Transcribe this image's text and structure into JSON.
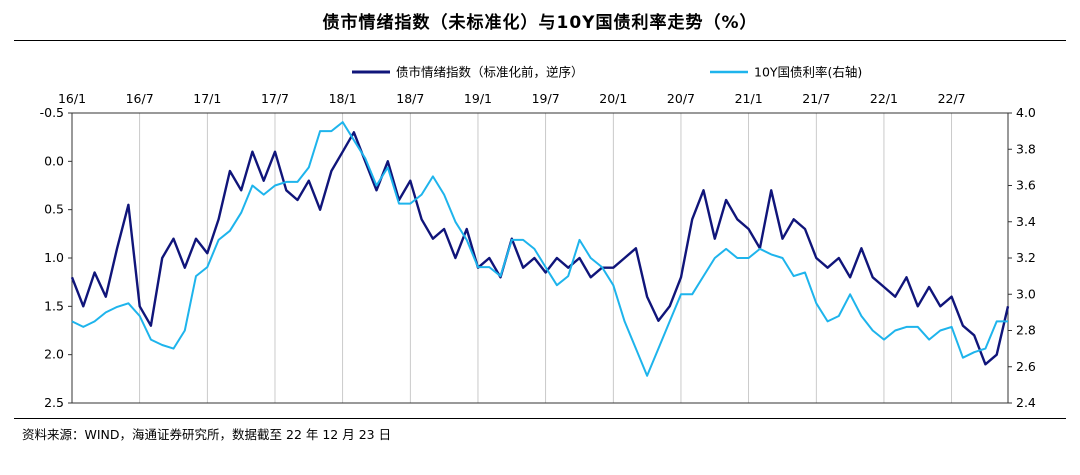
{
  "title": "债市情绪指数（未标准化）与10Y国债利率走势（%）",
  "source": "资料来源：WIND，海通证券研究所，数据截至 22 年 12 月 23 日",
  "chart_data": {
    "type": "line",
    "title": "债市情绪指数（未标准化）与10Y国债利率走势（%）",
    "x_tick_labels": [
      "16/1",
      "16/7",
      "17/1",
      "17/7",
      "18/1",
      "18/7",
      "19/1",
      "19/7",
      "20/1",
      "20/7",
      "21/1",
      "21/7",
      "22/1",
      "22/7"
    ],
    "x_range": [
      "2016-01",
      "2022-12"
    ],
    "y_left": {
      "range": [
        2.5,
        -0.5
      ],
      "reversed": true,
      "ticks": [
        "-0.5",
        "0.0",
        "0.5",
        "1.0",
        "1.5",
        "2.0",
        "2.5"
      ]
    },
    "y_right": {
      "range": [
        2.4,
        4.0
      ],
      "ticks": [
        "2.4",
        "2.6",
        "2.8",
        "3.0",
        "3.2",
        "3.4",
        "3.6",
        "3.8",
        "4.0"
      ]
    },
    "grid": "vertical",
    "legend_position": "top-center",
    "series": [
      {
        "name": "债市情绪指数（标准化前，逆序）",
        "axis": "left",
        "color": "#10157a",
        "points": [
          [
            "2016-01",
            1.2
          ],
          [
            "2016-02",
            1.5
          ],
          [
            "2016-03",
            1.15
          ],
          [
            "2016-04",
            1.4
          ],
          [
            "2016-05",
            0.9
          ],
          [
            "2016-06",
            0.45
          ],
          [
            "2016-07",
            1.5
          ],
          [
            "2016-08",
            1.7
          ],
          [
            "2016-09",
            1.0
          ],
          [
            "2016-10",
            0.8
          ],
          [
            "2016-11",
            1.1
          ],
          [
            "2016-12",
            0.8
          ],
          [
            "2017-01",
            0.95
          ],
          [
            "2017-02",
            0.6
          ],
          [
            "2017-03",
            0.1
          ],
          [
            "2017-04",
            0.3
          ],
          [
            "2017-05",
            -0.1
          ],
          [
            "2017-06",
            0.2
          ],
          [
            "2017-07",
            -0.1
          ],
          [
            "2017-08",
            0.3
          ],
          [
            "2017-09",
            0.4
          ],
          [
            "2017-10",
            0.2
          ],
          [
            "2017-11",
            0.5
          ],
          [
            "2017-12",
            0.1
          ],
          [
            "2018-01",
            -0.1
          ],
          [
            "2018-02",
            -0.3
          ],
          [
            "2018-03",
            0.0
          ],
          [
            "2018-04",
            0.3
          ],
          [
            "2018-05",
            0.0
          ],
          [
            "2018-06",
            0.4
          ],
          [
            "2018-07",
            0.2
          ],
          [
            "2018-08",
            0.6
          ],
          [
            "2018-09",
            0.8
          ],
          [
            "2018-10",
            0.7
          ],
          [
            "2018-11",
            1.0
          ],
          [
            "2018-12",
            0.7
          ],
          [
            "2019-01",
            1.1
          ],
          [
            "2019-02",
            1.0
          ],
          [
            "2019-03",
            1.2
          ],
          [
            "2019-04",
            0.8
          ],
          [
            "2019-05",
            1.1
          ],
          [
            "2019-06",
            1.0
          ],
          [
            "2019-07",
            1.15
          ],
          [
            "2019-08",
            1.0
          ],
          [
            "2019-09",
            1.1
          ],
          [
            "2019-10",
            1.0
          ],
          [
            "2019-11",
            1.2
          ],
          [
            "2019-12",
            1.1
          ],
          [
            "2020-01",
            1.1
          ],
          [
            "2020-02",
            1.0
          ],
          [
            "2020-03",
            0.9
          ],
          [
            "2020-04",
            1.4
          ],
          [
            "2020-05",
            1.65
          ],
          [
            "2020-06",
            1.5
          ],
          [
            "2020-07",
            1.2
          ],
          [
            "2020-08",
            0.6
          ],
          [
            "2020-09",
            0.3
          ],
          [
            "2020-10",
            0.8
          ],
          [
            "2020-11",
            0.4
          ],
          [
            "2020-12",
            0.6
          ],
          [
            "2021-01",
            0.7
          ],
          [
            "2021-02",
            0.9
          ],
          [
            "2021-03",
            0.3
          ],
          [
            "2021-04",
            0.8
          ],
          [
            "2021-05",
            0.6
          ],
          [
            "2021-06",
            0.7
          ],
          [
            "2021-07",
            1.0
          ],
          [
            "2021-08",
            1.1
          ],
          [
            "2021-09",
            1.0
          ],
          [
            "2021-10",
            1.2
          ],
          [
            "2021-11",
            0.9
          ],
          [
            "2021-12",
            1.2
          ],
          [
            "2022-01",
            1.3
          ],
          [
            "2022-02",
            1.4
          ],
          [
            "2022-03",
            1.2
          ],
          [
            "2022-04",
            1.5
          ],
          [
            "2022-05",
            1.3
          ],
          [
            "2022-06",
            1.5
          ],
          [
            "2022-07",
            1.4
          ],
          [
            "2022-08",
            1.7
          ],
          [
            "2022-09",
            1.8
          ],
          [
            "2022-10",
            2.1
          ],
          [
            "2022-11",
            2.0
          ],
          [
            "2022-12",
            1.5
          ]
        ]
      },
      {
        "name": "10Y国债利率(右轴)",
        "axis": "right",
        "color": "#1eb4ec",
        "points": [
          [
            "2016-01",
            2.85
          ],
          [
            "2016-02",
            2.82
          ],
          [
            "2016-03",
            2.85
          ],
          [
            "2016-04",
            2.9
          ],
          [
            "2016-05",
            2.93
          ],
          [
            "2016-06",
            2.95
          ],
          [
            "2016-07",
            2.88
          ],
          [
            "2016-08",
            2.75
          ],
          [
            "2016-09",
            2.72
          ],
          [
            "2016-10",
            2.7
          ],
          [
            "2016-11",
            2.8
          ],
          [
            "2016-12",
            3.1
          ],
          [
            "2017-01",
            3.15
          ],
          [
            "2017-02",
            3.3
          ],
          [
            "2017-03",
            3.35
          ],
          [
            "2017-04",
            3.45
          ],
          [
            "2017-05",
            3.6
          ],
          [
            "2017-06",
            3.55
          ],
          [
            "2017-07",
            3.6
          ],
          [
            "2017-08",
            3.62
          ],
          [
            "2017-09",
            3.62
          ],
          [
            "2017-10",
            3.7
          ],
          [
            "2017-11",
            3.9
          ],
          [
            "2017-12",
            3.9
          ],
          [
            "2018-01",
            3.95
          ],
          [
            "2018-02",
            3.85
          ],
          [
            "2018-03",
            3.75
          ],
          [
            "2018-04",
            3.6
          ],
          [
            "2018-05",
            3.7
          ],
          [
            "2018-06",
            3.5
          ],
          [
            "2018-07",
            3.5
          ],
          [
            "2018-08",
            3.55
          ],
          [
            "2018-09",
            3.65
          ],
          [
            "2018-10",
            3.55
          ],
          [
            "2018-11",
            3.4
          ],
          [
            "2018-12",
            3.3
          ],
          [
            "2019-01",
            3.15
          ],
          [
            "2019-02",
            3.15
          ],
          [
            "2019-03",
            3.1
          ],
          [
            "2019-04",
            3.3
          ],
          [
            "2019-05",
            3.3
          ],
          [
            "2019-06",
            3.25
          ],
          [
            "2019-07",
            3.15
          ],
          [
            "2019-08",
            3.05
          ],
          [
            "2019-09",
            3.1
          ],
          [
            "2019-10",
            3.3
          ],
          [
            "2019-11",
            3.2
          ],
          [
            "2019-12",
            3.15
          ],
          [
            "2020-01",
            3.05
          ],
          [
            "2020-02",
            2.85
          ],
          [
            "2020-03",
            2.7
          ],
          [
            "2020-04",
            2.55
          ],
          [
            "2020-05",
            2.7
          ],
          [
            "2020-06",
            2.85
          ],
          [
            "2020-07",
            3.0
          ],
          [
            "2020-08",
            3.0
          ],
          [
            "2020-09",
            3.1
          ],
          [
            "2020-10",
            3.2
          ],
          [
            "2020-11",
            3.25
          ],
          [
            "2020-12",
            3.2
          ],
          [
            "2021-01",
            3.2
          ],
          [
            "2021-02",
            3.25
          ],
          [
            "2021-03",
            3.22
          ],
          [
            "2021-04",
            3.2
          ],
          [
            "2021-05",
            3.1
          ],
          [
            "2021-06",
            3.12
          ],
          [
            "2021-07",
            2.95
          ],
          [
            "2021-08",
            2.85
          ],
          [
            "2021-09",
            2.88
          ],
          [
            "2021-10",
            3.0
          ],
          [
            "2021-11",
            2.88
          ],
          [
            "2021-12",
            2.8
          ],
          [
            "2022-01",
            2.75
          ],
          [
            "2022-02",
            2.8
          ],
          [
            "2022-03",
            2.82
          ],
          [
            "2022-04",
            2.82
          ],
          [
            "2022-05",
            2.75
          ],
          [
            "2022-06",
            2.8
          ],
          [
            "2022-07",
            2.82
          ],
          [
            "2022-08",
            2.65
          ],
          [
            "2022-09",
            2.68
          ],
          [
            "2022-10",
            2.7
          ],
          [
            "2022-11",
            2.85
          ],
          [
            "2022-12",
            2.85
          ]
        ]
      }
    ]
  }
}
